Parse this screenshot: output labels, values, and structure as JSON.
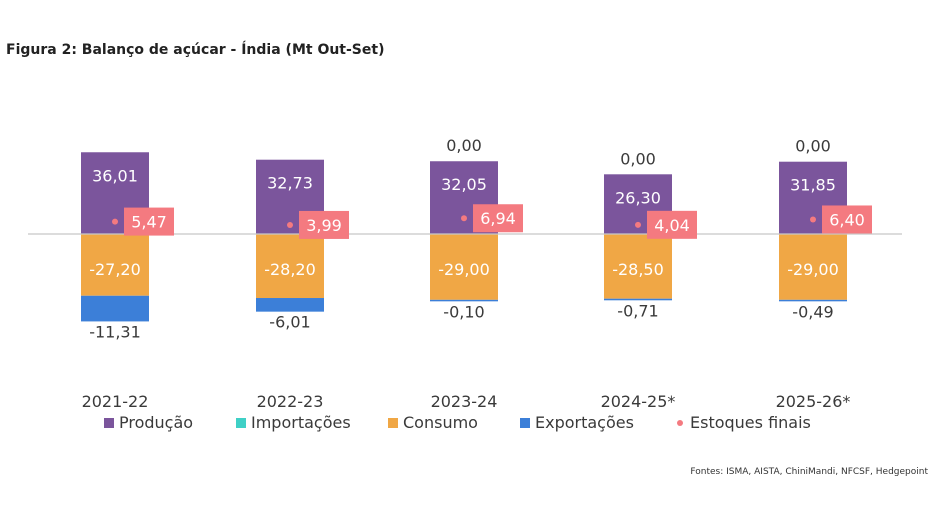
{
  "title": "Figura 2: Balanço de açúcar - Índia (Mt Out-Set)",
  "source": "Fontes: ISMA, AISTA, ChiniMandi, NFCSF, Hedgepoint",
  "colors": {
    "producao": "#7b559c",
    "importacoes": "#3fd0c6",
    "consumo": "#f0a745",
    "exportacoes": "#3c7fd8",
    "estoques": "#f47a80",
    "axis": "#c8c8c8"
  },
  "chart_data": {
    "type": "bar",
    "stacked": true,
    "title": "Figura 2: Balanço de açúcar - Índia (Mt Out-Set)",
    "categories": [
      "2021-22",
      "2022-23",
      "2023-24",
      "2024-25*",
      "2025-26*"
    ],
    "series": [
      {
        "name": "Produção",
        "key": "producao",
        "values": [
          36.01,
          32.73,
          32.05,
          26.3,
          31.85
        ],
        "labels": [
          "36,01",
          "32,73",
          "32,05",
          "26,30",
          "31,85"
        ]
      },
      {
        "name": "Importações",
        "key": "importacoes",
        "values": [
          null,
          null,
          0.0,
          0.0,
          0.0
        ],
        "labels": [
          "",
          "",
          "0,00",
          "0,00",
          "0,00"
        ]
      },
      {
        "name": "Consumo",
        "key": "consumo",
        "values": [
          -27.2,
          -28.2,
          -29.0,
          -28.5,
          -29.0
        ],
        "labels": [
          "-27,20",
          "-28,20",
          "-29,00",
          "-28,50",
          "-29,00"
        ]
      },
      {
        "name": "Exportações",
        "key": "exportacoes",
        "values": [
          -11.31,
          -6.01,
          -0.1,
          -0.71,
          -0.49
        ],
        "labels": [
          "-11,31",
          "-6,01",
          "-0,10",
          "-0,71",
          "-0,49"
        ]
      },
      {
        "name": "Estoques finais",
        "key": "estoques",
        "values": [
          5.47,
          3.99,
          6.94,
          4.04,
          6.4
        ],
        "labels": [
          "5,47",
          "3,99",
          "6,94",
          "4,04",
          "6,40"
        ]
      }
    ],
    "legend": [
      "Produção",
      "Importações",
      "Consumo",
      "Exportações",
      "Estoques finais"
    ],
    "legend_position": "bottom",
    "grid": false
  }
}
